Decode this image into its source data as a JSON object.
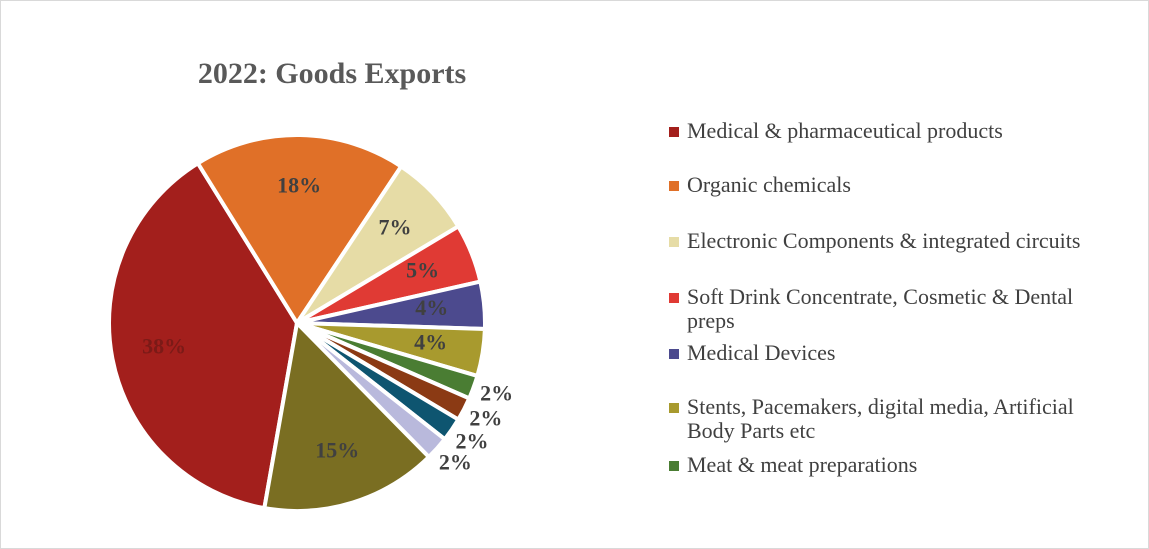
{
  "chart_data": {
    "type": "pie",
    "title": "2022: Goods Exports",
    "categories": [
      "Medical & pharmaceutical products",
      "Organic chemicals",
      "Electronic Components & integrated circuits",
      "Soft Drink Concentrate, Cosmetic & Dental preps",
      "Medical Devices",
      "Stents, Pacemakers,  digital media, Artificial Body Parts etc",
      "Meat & meat preparations",
      null,
      null,
      null,
      null
    ],
    "values": [
      38,
      18,
      7,
      5,
      4,
      4,
      2,
      2,
      2,
      2,
      15
    ],
    "value_labels": [
      "38%",
      "18%",
      "7%",
      "5%",
      "4%",
      "4%",
      "2%",
      "2%",
      "2%",
      "2%",
      "15%"
    ],
    "colors": [
      "#a31f1c",
      "#e07028",
      "#e6dca6",
      "#e03a34",
      "#4c4a8e",
      "#a89a2e",
      "#4a7d33",
      "#8b3a14",
      "#0e5570",
      "#b9b9dc",
      "#7a6e22"
    ],
    "legend": "right"
  }
}
